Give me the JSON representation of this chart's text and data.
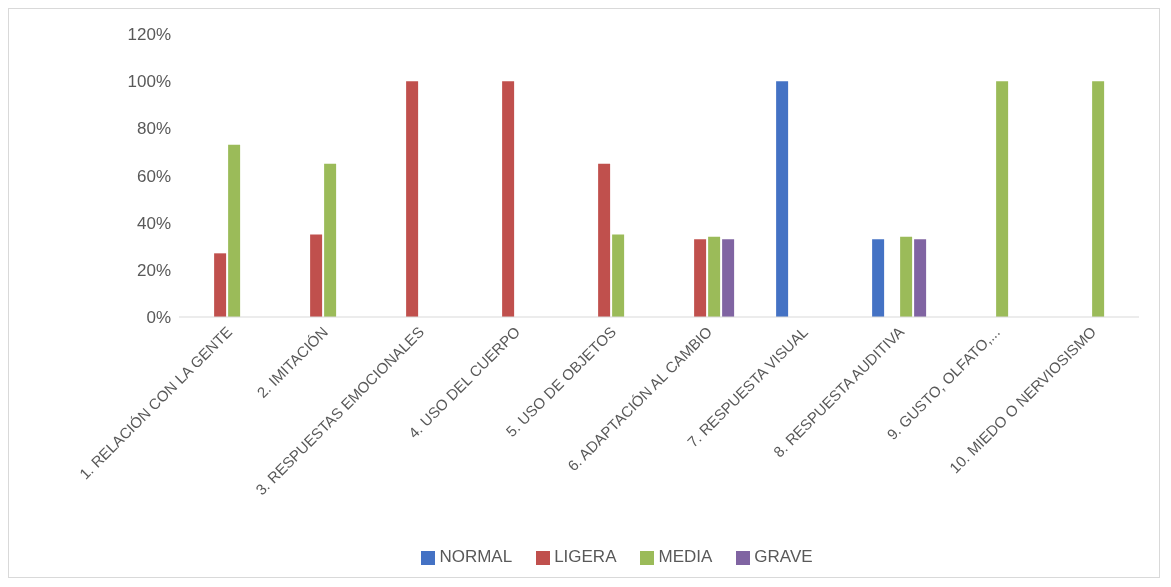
{
  "chart_data": {
    "type": "bar",
    "categories": [
      "1. RELACIÓN CON LA GENTE",
      "2. IMITACIÓN",
      "3. RESPUESTAS EMOCIONALES",
      "4. USO DEL CUERPO",
      "5. USO DE OBJETOS",
      "6. ADAPTACIÓN AL CAMBIO",
      "7. RESPUESTA VISUAL",
      "8. RESPUESTA AUDITIVA",
      "9. GUSTO, OLFATO,...",
      "10. MIEDO O NERVIOSISMO"
    ],
    "series": [
      {
        "name": "NORMAL",
        "color": "#4472c4",
        "values": [
          null,
          null,
          null,
          null,
          null,
          null,
          100,
          33,
          null,
          null
        ]
      },
      {
        "name": "LIGERA",
        "color": "#c0504d",
        "values": [
          27,
          35,
          100,
          100,
          65,
          33,
          null,
          null,
          null,
          null
        ]
      },
      {
        "name": "MEDIA",
        "color": "#9bbb59",
        "values": [
          73,
          65,
          null,
          null,
          35,
          34,
          null,
          34,
          100,
          100
        ]
      },
      {
        "name": "GRAVE",
        "color": "#8064a2",
        "values": [
          null,
          null,
          null,
          null,
          null,
          33,
          null,
          33,
          null,
          null
        ]
      }
    ],
    "ylim": [
      0,
      120
    ],
    "yticks": [
      {
        "value": 0,
        "label": "0%"
      },
      {
        "value": 20,
        "label": "20%"
      },
      {
        "value": 40,
        "label": "40%"
      },
      {
        "value": 60,
        "label": "60%"
      },
      {
        "value": 80,
        "label": "80%"
      },
      {
        "value": 100,
        "label": "100%"
      },
      {
        "value": 120,
        "label": "120%"
      }
    ],
    "grid": false,
    "legend": "bottom"
  }
}
